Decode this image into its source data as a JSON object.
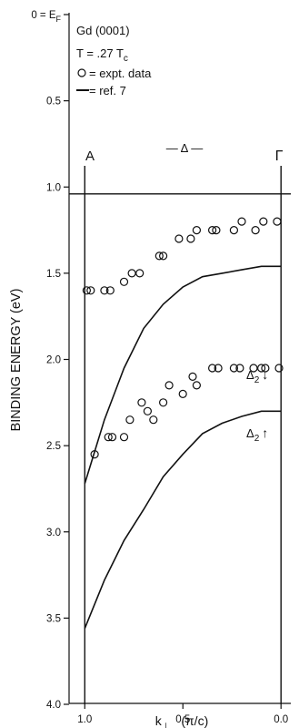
{
  "chart_data": {
    "type": "line",
    "title": "",
    "xlabel": "k⊥ (π/c)",
    "xlabel_main": "k",
    "xlabel_sub": "⊥",
    "xlabel_unit": "(π/c)",
    "ylabel": "BINDING ENERGY (eV)",
    "xlim": [
      1.08,
      -0.05
    ],
    "ylim": [
      4.0,
      0.0
    ],
    "x_reversed": true,
    "y_reversed": true,
    "x_ticks": [
      1.0,
      0.5,
      0.0
    ],
    "x_tick_labels": [
      "1.0",
      "0.5",
      "0.0"
    ],
    "y_ticks": [
      0.0,
      0.5,
      1.0,
      1.5,
      2.0,
      2.5,
      3.0,
      3.5,
      4.0
    ],
    "y_tick_labels": [
      "0 = E",
      "0.5",
      "1.0",
      "1.5",
      "2.0",
      "2.5",
      "3.0",
      "3.5",
      "4.0"
    ],
    "y_top_label_sub": "F",
    "annotations": {
      "sample": "Gd (0001)",
      "temperature": "T = .27 T",
      "temperature_sub": "c",
      "legend_data": "= expt. data",
      "legend_ref": "= ref. 7",
      "point_A": "A",
      "point_Gamma": "Γ",
      "direction": "— Δ —",
      "band_down_sym": "Δ",
      "band_down_sub": "2",
      "band_down_arrow": "↓",
      "band_up_sym": "Δ",
      "band_up_sub": "2",
      "band_up_arrow": "↑"
    },
    "reference_line_y": 1.04,
    "vertical_lines_x": [
      1.0,
      0.0
    ],
    "series": [
      {
        "name": "= expt. data",
        "marker": "open-circle",
        "points": [
          [
            0.99,
            1.6
          ],
          [
            0.97,
            1.6
          ],
          [
            0.9,
            1.6
          ],
          [
            0.87,
            1.6
          ],
          [
            0.8,
            1.55
          ],
          [
            0.76,
            1.5
          ],
          [
            0.72,
            1.5
          ],
          [
            0.62,
            1.4
          ],
          [
            0.6,
            1.4
          ],
          [
            0.52,
            1.3
          ],
          [
            0.46,
            1.3
          ],
          [
            0.43,
            1.25
          ],
          [
            0.35,
            1.25
          ],
          [
            0.33,
            1.25
          ],
          [
            0.24,
            1.25
          ],
          [
            0.2,
            1.2
          ],
          [
            0.13,
            1.25
          ],
          [
            0.09,
            1.2
          ],
          [
            0.02,
            1.2
          ],
          [
            0.95,
            2.55
          ],
          [
            0.88,
            2.45
          ],
          [
            0.86,
            2.45
          ],
          [
            0.8,
            2.45
          ],
          [
            0.77,
            2.35
          ],
          [
            0.71,
            2.25
          ],
          [
            0.68,
            2.3
          ],
          [
            0.65,
            2.35
          ],
          [
            0.6,
            2.25
          ],
          [
            0.57,
            2.15
          ],
          [
            0.5,
            2.2
          ],
          [
            0.45,
            2.1
          ],
          [
            0.43,
            2.15
          ],
          [
            0.35,
            2.05
          ],
          [
            0.32,
            2.05
          ],
          [
            0.24,
            2.05
          ],
          [
            0.21,
            2.05
          ],
          [
            0.14,
            2.05
          ],
          [
            0.1,
            2.05
          ],
          [
            0.08,
            2.05
          ],
          [
            0.01,
            2.05
          ]
        ]
      },
      {
        "name": "= ref. 7",
        "marker": "line",
        "points": [
          [
            1.0,
            2.72
          ],
          [
            0.9,
            2.35
          ],
          [
            0.8,
            2.05
          ],
          [
            0.7,
            1.82
          ],
          [
            0.6,
            1.68
          ],
          [
            0.5,
            1.58
          ],
          [
            0.4,
            1.52
          ],
          [
            0.3,
            1.5
          ],
          [
            0.2,
            1.48
          ],
          [
            0.1,
            1.46
          ],
          [
            0.0,
            1.46
          ]
        ]
      },
      {
        "name": "= ref. 7",
        "marker": "line",
        "points": [
          [
            1.0,
            3.56
          ],
          [
            0.9,
            3.28
          ],
          [
            0.8,
            3.05
          ],
          [
            0.7,
            2.87
          ],
          [
            0.6,
            2.68
          ],
          [
            0.5,
            2.55
          ],
          [
            0.4,
            2.43
          ],
          [
            0.3,
            2.37
          ],
          [
            0.2,
            2.33
          ],
          [
            0.1,
            2.3
          ],
          [
            0.0,
            2.3
          ]
        ]
      }
    ]
  }
}
